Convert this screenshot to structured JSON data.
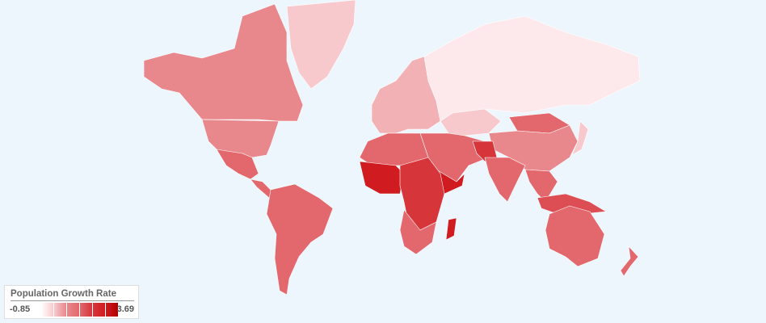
{
  "legend": {
    "title": "Population Growth Rate",
    "min_label": "-0.85",
    "max_label": "3.69",
    "colors": [
      "#fde9eb",
      "#f7c9cc",
      "#f2b1b5",
      "#e8878c",
      "#e2686d",
      "#dc4e53",
      "#d6353a",
      "#d01c21",
      "#c40808"
    ]
  },
  "colors": {
    "background": "#eef6fd",
    "border": "#ffffff"
  }
}
